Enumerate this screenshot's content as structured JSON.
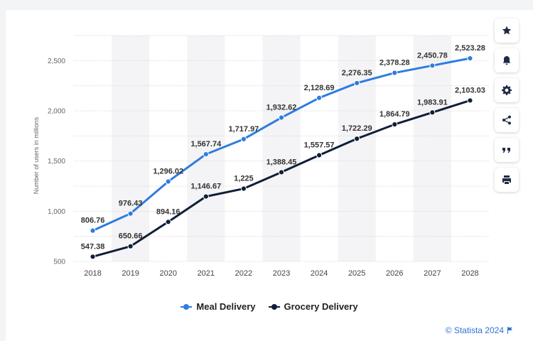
{
  "chart_data": {
    "type": "line",
    "x": [
      "2018",
      "2019",
      "2020",
      "2021",
      "2022",
      "2023",
      "2024",
      "2025",
      "2026",
      "2027",
      "2028"
    ],
    "series": [
      {
        "name": "Meal Delivery",
        "color": "#2e7ce0",
        "values": [
          806.76,
          976.43,
          1296.02,
          1567.74,
          1717.97,
          1932.62,
          2128.69,
          2276.35,
          2378.28,
          2450.78,
          2523.28
        ],
        "labels": [
          "806.76",
          "976.43",
          "1,296.02",
          "1,567.74",
          "1,717.97",
          "1,932.62",
          "2,128.69",
          "2,276.35",
          "2,378.28",
          "2,450.78",
          "2,523.28"
        ]
      },
      {
        "name": "Grocery Delivery",
        "color": "#0f1f38",
        "values": [
          547.38,
          650.66,
          894.16,
          1146.67,
          1225,
          1388.45,
          1557.57,
          1722.29,
          1864.79,
          1983.91,
          2103.03
        ],
        "labels": [
          "547.38",
          "650.66",
          "894.16",
          "1,146.67",
          "1,225",
          "1,388.45",
          "1,557.57",
          "1,722.29",
          "1,864.79",
          "1,983.91",
          "2,103.03"
        ]
      }
    ],
    "ylabel": "Number of users in millions",
    "ylim": [
      500,
      2750
    ],
    "yticks": [
      500,
      1000,
      1500,
      2000,
      2500
    ],
    "ytick_labels": [
      "500",
      "1,000",
      "1,500",
      "2,000",
      "2,500"
    ],
    "grid": true,
    "legend": "bottom-center"
  },
  "legend": {
    "meal": "Meal Delivery",
    "grocery": "Grocery Delivery"
  },
  "credit": "© Statista 2024",
  "sidebar": {
    "items": [
      "star-icon",
      "bell-icon",
      "gear-icon",
      "share-icon",
      "quote-icon",
      "print-icon"
    ]
  }
}
